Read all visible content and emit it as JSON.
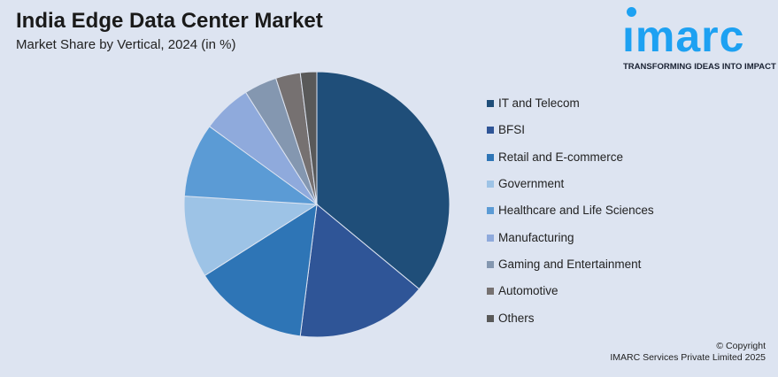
{
  "header": {
    "title": "India Edge Data Center Market",
    "subtitle": "Market Share by Vertical, 2024 (in %)"
  },
  "logo": {
    "word": "imarc",
    "tagline": "TRANSFORMING IDEAS INTO IMPACT",
    "color": "#1da1f2"
  },
  "chart_data": {
    "type": "pie",
    "title": "India Edge Data Center Market",
    "subtitle": "Market Share by Vertical, 2024 (in %)",
    "categories": [
      "IT and Telecom",
      "BFSI",
      "Retail and E-commerce",
      "Government",
      "Healthcare and Life Sciences",
      "Manufacturing",
      "Gaming and Entertainment",
      "Automotive",
      "Others"
    ],
    "values": [
      36,
      16,
      14,
      10,
      9,
      6,
      4,
      3,
      2
    ],
    "colors": [
      "#1f4e79",
      "#2f5597",
      "#2e75b6",
      "#9dc3e6",
      "#5b9bd5",
      "#8faadc",
      "#8497b0",
      "#767171",
      "#595959"
    ],
    "legend": "right"
  },
  "footer": {
    "copyright": "© Copyright",
    "company": "IMARC Services Private Limited 2025"
  }
}
